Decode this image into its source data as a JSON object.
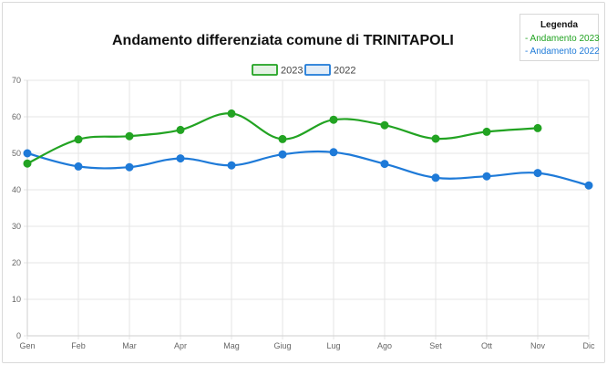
{
  "title": "Andamento differenziata comune di TRINITAPOLI",
  "legend_box": {
    "title": "Legenda",
    "items": [
      "- Andamento 2023",
      "- Andamento 2022"
    ]
  },
  "colors": {
    "series_2023": "#22a322",
    "series_2022": "#1e7ad8",
    "grid": "#e6e6e6",
    "axis_text": "#666666"
  },
  "chart_data": {
    "type": "line",
    "title": "Andamento differenziata comune di TRINITAPOLI",
    "categories": [
      "Gen",
      "Feb",
      "Mar",
      "Apr",
      "Mag",
      "Giug",
      "Lug",
      "Ago",
      "Set",
      "Ott",
      "Nov",
      "Dic"
    ],
    "series": [
      {
        "name": "2023",
        "values": [
          47.2,
          53.8,
          54.7,
          56.4,
          60.9,
          53.9,
          59.2,
          57.7,
          54.0,
          55.9,
          56.9,
          null
        ]
      },
      {
        "name": "2022",
        "values": [
          50.0,
          46.4,
          46.2,
          48.6,
          46.7,
          49.7,
          50.3,
          47.1,
          43.3,
          43.7,
          44.6,
          41.2
        ]
      }
    ],
    "ylim": [
      0,
      70
    ],
    "yticks": [
      0,
      10,
      20,
      30,
      40,
      50,
      60,
      70
    ],
    "grid": true,
    "legend": "top-center",
    "smooth": true
  }
}
